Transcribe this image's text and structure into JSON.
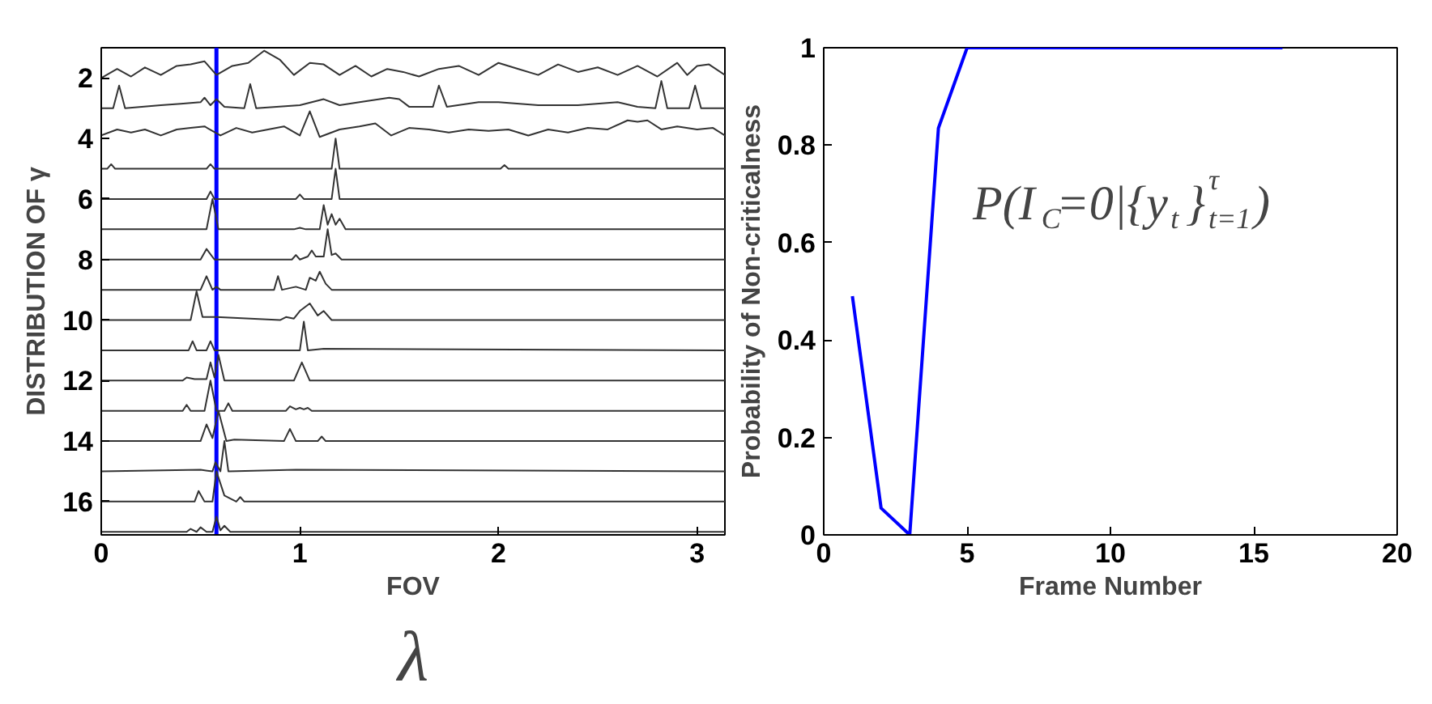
{
  "chart_data": [
    {
      "type": "line",
      "xlabel": "FOV",
      "ylabel": "DISTRIBUTION OF γ",
      "xlim": [
        0,
        3.14
      ],
      "xticks": [
        0,
        1,
        2,
        3
      ],
      "ylim": [
        17.1,
        1
      ],
      "yticks": [
        2,
        4,
        6,
        8,
        10,
        12,
        14,
        16
      ],
      "grid": false,
      "annotations": [
        "λ"
      ],
      "ref_lines": [
        {
          "axis": "x",
          "value": 0.58,
          "color": "#0000ff"
        }
      ],
      "series": [
        {
          "color": "#333333",
          "x": [
            0,
            0.08,
            0.15,
            0.22,
            0.3,
            0.38,
            0.45,
            0.52,
            0.58,
            0.66,
            0.74,
            0.82,
            0.9,
            0.97,
            1.05,
            1.12,
            1.2,
            1.28,
            1.36,
            1.44,
            1.52,
            1.6,
            1.7,
            1.8,
            1.9,
            2.0,
            2.1,
            2.2,
            2.3,
            2.4,
            2.5,
            2.6,
            2.7,
            2.8,
            2.9,
            2.95,
            3.0,
            3.06,
            3.14
          ],
          "values": [
            2,
            1.7,
            1.95,
            1.65,
            1.9,
            1.6,
            1.55,
            1.45,
            1.9,
            1.6,
            1.5,
            1.1,
            1.4,
            1.9,
            1.5,
            1.55,
            1.9,
            1.6,
            1.95,
            1.7,
            1.8,
            1.95,
            1.7,
            1.6,
            1.9,
            1.5,
            1.7,
            1.9,
            1.55,
            1.8,
            1.65,
            1.9,
            1.6,
            1.95,
            1.5,
            1.9,
            1.6,
            1.55,
            1.9
          ]
        },
        {
          "color": "#333333",
          "x": [
            0,
            0.06,
            0.09,
            0.12,
            0.3,
            0.4,
            0.5,
            0.52,
            0.55,
            0.58,
            0.62,
            0.72,
            0.75,
            0.78,
            1.0,
            1.12,
            1.2,
            1.3,
            1.45,
            1.5,
            1.55,
            1.67,
            1.7,
            1.74,
            1.9,
            2.0,
            2.2,
            2.4,
            2.6,
            2.7,
            2.79,
            2.82,
            2.85,
            2.96,
            2.99,
            3.02,
            3.14
          ],
          "values": [
            3,
            3,
            2.25,
            3,
            2.9,
            2.85,
            2.8,
            2.65,
            2.9,
            2.7,
            2.95,
            3,
            2.2,
            3,
            2.9,
            2.7,
            2.9,
            2.8,
            2.65,
            2.7,
            2.95,
            2.95,
            2.25,
            2.95,
            2.8,
            2.8,
            2.9,
            2.9,
            2.8,
            2.95,
            3,
            2.1,
            3,
            3,
            2.25,
            3,
            3
          ]
        },
        {
          "color": "#333333",
          "x": [
            0,
            0.08,
            0.15,
            0.22,
            0.3,
            0.38,
            0.45,
            0.52,
            0.6,
            0.68,
            0.76,
            0.84,
            0.92,
            1.0,
            1.05,
            1.1,
            1.2,
            1.3,
            1.38,
            1.46,
            1.55,
            1.65,
            1.75,
            1.85,
            1.95,
            2.05,
            2.15,
            2.25,
            2.35,
            2.45,
            2.55,
            2.65,
            2.7,
            2.75,
            2.82,
            2.9,
            3.0,
            3.08,
            3.14
          ],
          "values": [
            3.9,
            3.7,
            3.8,
            3.7,
            3.9,
            3.7,
            3.65,
            3.6,
            3.9,
            3.65,
            3.8,
            3.7,
            3.6,
            3.9,
            3.1,
            3.95,
            3.7,
            3.6,
            3.5,
            3.9,
            3.65,
            3.7,
            3.8,
            3.7,
            3.75,
            3.7,
            3.9,
            3.7,
            3.8,
            3.65,
            3.7,
            3.4,
            3.45,
            3.4,
            3.7,
            3.6,
            3.7,
            3.65,
            3.9
          ]
        },
        {
          "color": "#333333",
          "x": [
            0,
            0.03,
            0.05,
            0.07,
            0.53,
            0.55,
            0.57,
            1.16,
            1.18,
            1.2,
            2.01,
            2.03,
            2.05,
            3.14
          ],
          "values": [
            5,
            5,
            4.85,
            5,
            5,
            4.85,
            5,
            5,
            4,
            5,
            5,
            4.88,
            5,
            5
          ]
        },
        {
          "color": "#333333",
          "x": [
            0,
            0.53,
            0.55,
            0.57,
            0.98,
            1.0,
            1.02,
            1.16,
            1.18,
            1.2,
            3.14
          ],
          "values": [
            6,
            6,
            5.75,
            6,
            6,
            5.85,
            6,
            6,
            5,
            6,
            6
          ]
        },
        {
          "color": "#333333",
          "x": [
            0,
            0.53,
            0.56,
            0.59,
            0.97,
            1.0,
            1.03,
            1.1,
            1.12,
            1.14,
            1.16,
            1.18,
            1.2,
            1.23,
            3.14
          ],
          "values": [
            7,
            7,
            6,
            7,
            7,
            6.95,
            7,
            7,
            6.2,
            6.85,
            6.5,
            6.85,
            6.65,
            7,
            7
          ]
        },
        {
          "color": "#333333",
          "x": [
            0,
            0.5,
            0.53,
            0.57,
            0.96,
            0.98,
            1.0,
            1.04,
            1.06,
            1.08,
            1.12,
            1.14,
            1.16,
            1.18,
            1.21,
            3.14
          ],
          "values": [
            8,
            8,
            7.65,
            8,
            8,
            7.85,
            8,
            7.9,
            7.7,
            7.9,
            7.9,
            7,
            7.85,
            7.8,
            8,
            8
          ]
        },
        {
          "color": "#333333",
          "x": [
            0,
            0.5,
            0.53,
            0.56,
            0.58,
            0.6,
            0.87,
            0.89,
            0.91,
            0.98,
            1.03,
            1.05,
            1.08,
            1.1,
            1.13,
            1.16,
            3.14
          ],
          "values": [
            9,
            9,
            8.55,
            9,
            8.9,
            9,
            9,
            8.55,
            9,
            8.9,
            9,
            8.6,
            8.7,
            8.4,
            8.8,
            9,
            9
          ]
        },
        {
          "color": "#333333",
          "x": [
            0,
            0.45,
            0.48,
            0.51,
            0.58,
            0.9,
            0.93,
            0.97,
            1.0,
            1.05,
            1.09,
            1.12,
            1.16,
            3.14
          ],
          "values": [
            10,
            10,
            9.05,
            9.9,
            9.9,
            10,
            9.9,
            9.95,
            9.7,
            9.45,
            9.85,
            9.7,
            10,
            10
          ]
        },
        {
          "color": "#333333",
          "x": [
            0,
            0.44,
            0.46,
            0.48,
            0.53,
            0.55,
            0.57,
            1.0,
            1.02,
            1.04,
            1.12,
            3.14
          ],
          "values": [
            11,
            11,
            10.7,
            11,
            11,
            10.7,
            11,
            11,
            10.05,
            11,
            10.95,
            11
          ]
        },
        {
          "color": "#333333",
          "x": [
            0,
            0.41,
            0.43,
            0.47,
            0.53,
            0.55,
            0.57,
            0.59,
            0.62,
            0.97,
            1.01,
            1.05,
            3.14
          ],
          "values": [
            12,
            12,
            11.9,
            11.95,
            11.95,
            11.4,
            11.9,
            11.15,
            12,
            12,
            11.4,
            12,
            12
          ]
        },
        {
          "color": "#333333",
          "x": [
            0,
            0.41,
            0.43,
            0.45,
            0.52,
            0.55,
            0.58,
            0.62,
            0.64,
            0.66,
            0.93,
            0.95,
            0.98,
            1.0,
            1.02,
            1.04,
            1.06,
            3.14
          ],
          "values": [
            13,
            13,
            12.8,
            13,
            13,
            12,
            13,
            13,
            12.75,
            13,
            13,
            12.85,
            12.95,
            12.9,
            12.95,
            12.9,
            13,
            13
          ]
        },
        {
          "color": "#333333",
          "x": [
            0,
            0.5,
            0.53,
            0.56,
            0.59,
            0.63,
            0.67,
            0.92,
            0.95,
            0.98,
            1.09,
            1.11,
            1.13,
            3.14
          ],
          "values": [
            14,
            14,
            13.45,
            13.9,
            13,
            14,
            13.95,
            14,
            13.6,
            14,
            14,
            13.85,
            14,
            14
          ]
        },
        {
          "color": "#333333",
          "x": [
            0,
            0.5,
            0.56,
            0.575,
            0.6,
            0.62,
            0.64,
            0.98,
            3.14
          ],
          "values": [
            15,
            14.95,
            15,
            14.7,
            15,
            14,
            15,
            14.95,
            15
          ]
        },
        {
          "color": "#333333",
          "x": [
            0,
            0.47,
            0.49,
            0.52,
            0.56,
            0.58,
            0.62,
            0.68,
            0.7,
            0.72,
            3.14
          ],
          "values": [
            16,
            16,
            15.65,
            16,
            16,
            15,
            15.8,
            16,
            15.85,
            16,
            16
          ]
        },
        {
          "color": "#333333",
          "x": [
            0,
            0.43,
            0.45,
            0.48,
            0.5,
            0.53,
            0.56,
            0.58,
            0.6,
            0.62,
            0.65,
            3.14
          ],
          "values": [
            17,
            17,
            16.9,
            17,
            16.85,
            17,
            17,
            16.5,
            16.95,
            16.8,
            17,
            17
          ]
        }
      ]
    },
    {
      "type": "line",
      "xlabel": "Frame Number",
      "ylabel": "Probability of Non-criticalness",
      "xlim": [
        0,
        20
      ],
      "xticks": [
        0,
        5,
        10,
        15,
        20
      ],
      "ylim": [
        0,
        1
      ],
      "yticks": [
        0,
        0.2,
        0.4,
        0.6,
        0.8,
        1
      ],
      "grid": false,
      "annotations": [
        "P(I$_{C}$=0|{y$_{t}$}$^{τ}$$_{t=1}$)"
      ],
      "x": [
        1,
        2,
        3,
        4,
        5,
        6,
        7,
        8,
        9,
        10,
        11,
        12,
        13,
        14,
        15,
        16
      ],
      "series": [
        {
          "color": "#0000ff",
          "values": [
            0.49,
            0.055,
            0,
            0.835,
            1,
            1,
            1,
            1,
            1,
            1,
            1,
            1,
            1,
            1,
            1,
            1
          ]
        }
      ]
    }
  ]
}
